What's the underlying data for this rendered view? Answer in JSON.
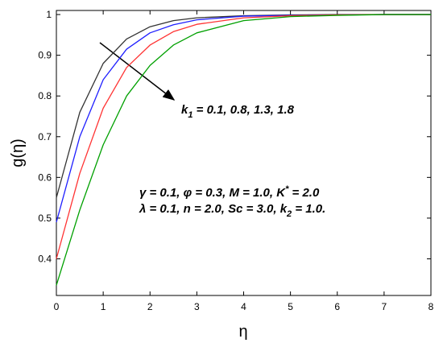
{
  "chart_data": {
    "type": "line",
    "x_label": "η",
    "y_label": "g(η)",
    "x": [
      0,
      0.5,
      1,
      1.5,
      2,
      2.5,
      3,
      4,
      5,
      6,
      7,
      8
    ],
    "series": [
      {
        "color": "#333333",
        "values": [
          0.55,
          0.76,
          0.88,
          0.94,
          0.97,
          0.985,
          0.992,
          0.997,
          0.999,
          1,
          1,
          1
        ]
      },
      {
        "color": "#1f1fff",
        "values": [
          0.49,
          0.7,
          0.84,
          0.915,
          0.955,
          0.975,
          0.987,
          0.996,
          0.998,
          0.999,
          1,
          1
        ]
      },
      {
        "color": "#ff3333",
        "values": [
          0.4,
          0.61,
          0.77,
          0.87,
          0.925,
          0.958,
          0.976,
          0.992,
          0.997,
          0.999,
          1,
          1
        ]
      },
      {
        "color": "#00a000",
        "values": [
          0.335,
          0.52,
          0.68,
          0.8,
          0.875,
          0.925,
          0.955,
          0.985,
          0.995,
          0.998,
          1,
          1
        ]
      }
    ],
    "xlim": [
      0,
      8
    ],
    "xticks": [
      0,
      1,
      2,
      3,
      4,
      5,
      6,
      7,
      8
    ],
    "ylim": [
      0.31,
      1.01
    ],
    "yticks": [
      0.4,
      0.5,
      0.6,
      0.7,
      0.8,
      0.9,
      1
    ],
    "annotations": [
      {
        "parts": [
          "k",
          "1",
          " = 0.1, 0.8, 1.3, 1.8"
        ]
      },
      {
        "parts": [
          "γ = 0.1,  φ = 0.3,  M = 1.0, K",
          "*",
          " = 2.0"
        ]
      },
      {
        "parts": [
          "λ = 0.1,  n = 2.0,  Sc = 3.0, k",
          "2",
          " = 1.0."
        ]
      }
    ]
  }
}
